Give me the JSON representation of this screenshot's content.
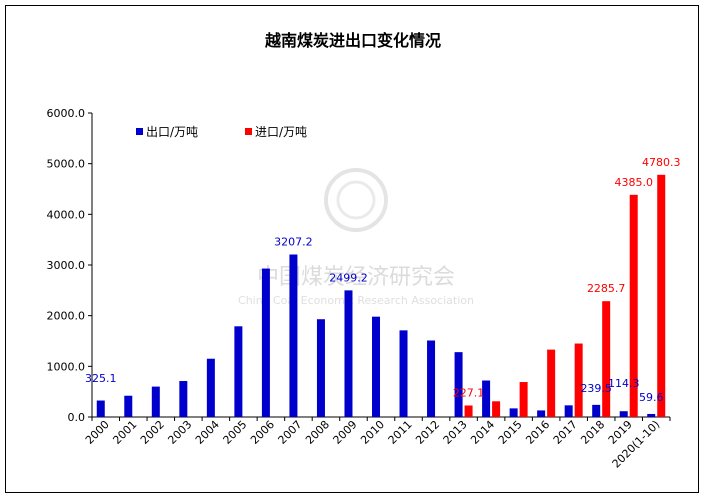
{
  "chart_data": {
    "type": "bar",
    "title": "越南煤炭进出口变化情况",
    "categories": [
      "2000",
      "2001",
      "2002",
      "2003",
      "2004",
      "2005",
      "2006",
      "2007",
      "2008",
      "2009",
      "2010",
      "2011",
      "2012",
      "2013",
      "2014",
      "2015",
      "2016",
      "2017",
      "2018",
      "2019",
      "2020(1-10)"
    ],
    "series": [
      {
        "name": "出口/万吨",
        "color": "#0000cc",
        "values": [
          325.1,
          420,
          600,
          710,
          1150,
          1790,
          2930,
          3207.2,
          1930,
          2499.2,
          1980,
          1710,
          1510,
          1280,
          720,
          170,
          130,
          230,
          239.5,
          114.3,
          59.6
        ]
      },
      {
        "name": "进口/万吨",
        "color": "#ff0000",
        "values": [
          null,
          null,
          null,
          null,
          null,
          null,
          null,
          null,
          null,
          null,
          null,
          null,
          null,
          227.1,
          310,
          690,
          1330,
          1450,
          2285.7,
          4385.0,
          4780.3
        ]
      }
    ],
    "data_labels": [
      {
        "series": 0,
        "index": 0,
        "text": "325.1"
      },
      {
        "series": 0,
        "index": 7,
        "text": "3207.2"
      },
      {
        "series": 0,
        "index": 9,
        "text": "2499.2"
      },
      {
        "series": 0,
        "index": 18,
        "text": "239.5"
      },
      {
        "series": 0,
        "index": 19,
        "text": "114.3"
      },
      {
        "series": 0,
        "index": 20,
        "text": "59.6"
      },
      {
        "series": 1,
        "index": 13,
        "text": "227.1"
      },
      {
        "series": 1,
        "index": 18,
        "text": "2285.7"
      },
      {
        "series": 1,
        "index": 19,
        "text": "4385.0"
      },
      {
        "series": 1,
        "index": 20,
        "text": "4780.3"
      }
    ],
    "y_ticks": [
      "0.0",
      "1000.0",
      "2000.0",
      "3000.0",
      "4000.0",
      "5000.0",
      "6000.0"
    ],
    "ylim": [
      0,
      6000
    ],
    "xlabel": "",
    "ylabel": "",
    "grid": false,
    "legend": "top-left"
  },
  "watermark": {
    "text": "中国煤炭经济研究会",
    "sub": "China Coal Economic Research Association"
  }
}
